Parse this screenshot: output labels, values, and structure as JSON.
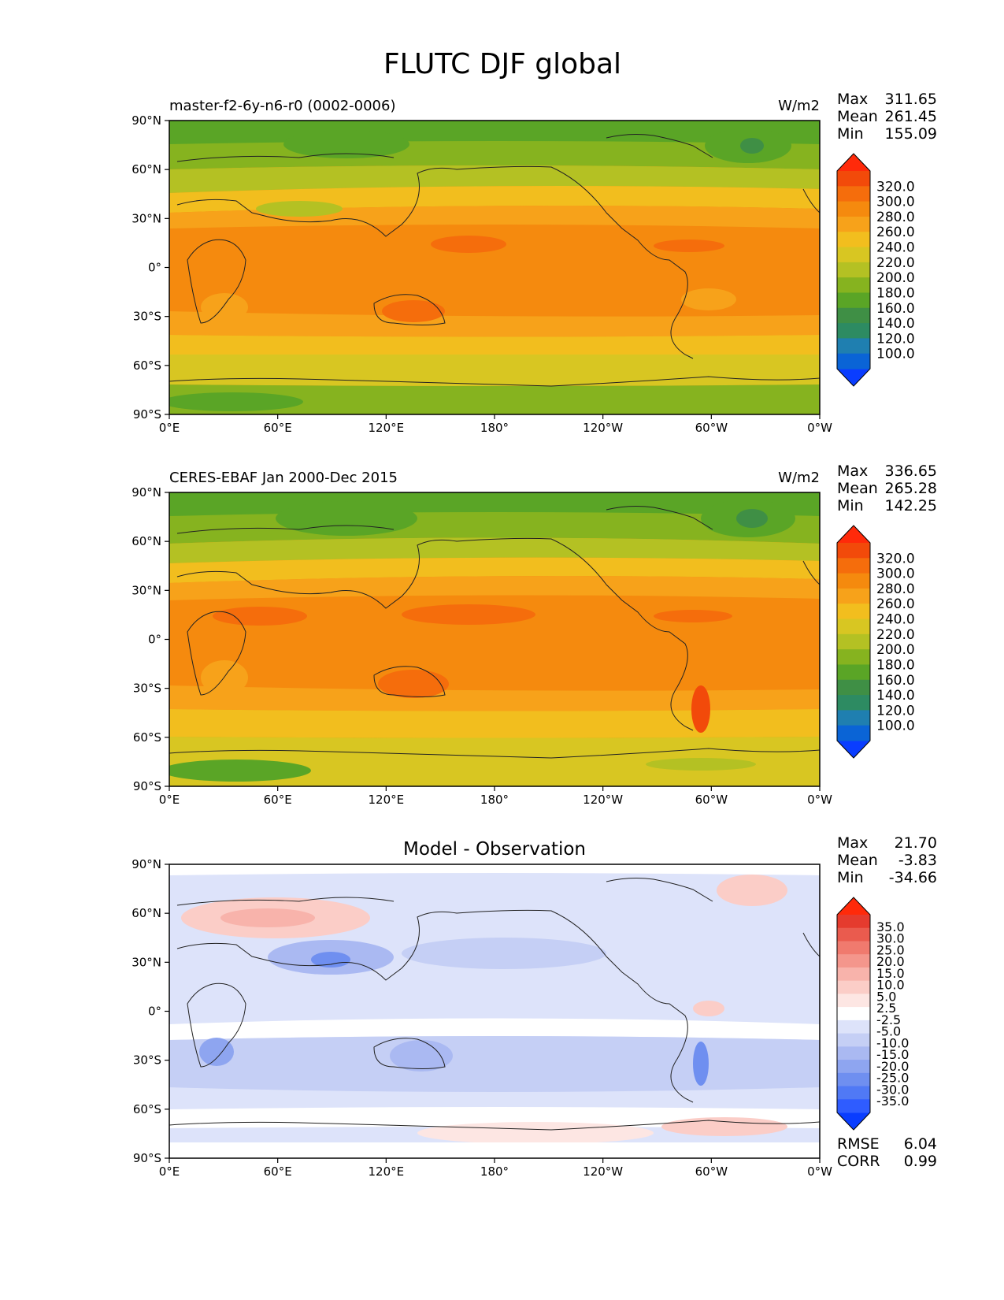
{
  "figure": {
    "title": "FLUTC DJF global"
  },
  "x_ticks": [
    "0°E",
    "60°E",
    "120°E",
    "180°",
    "120°W",
    "60°W",
    "0°W"
  ],
  "y_ticks": [
    "90°N",
    "60°N",
    "30°N",
    "0°",
    "30°S",
    "60°S",
    "90°S"
  ],
  "stat_labels": {
    "max": "Max",
    "mean": "Mean",
    "min": "Min",
    "rmse": "RMSE",
    "corr": "CORR"
  },
  "panels": [
    {
      "id": "model",
      "left_title": "master-f2-6y-n6-r0 (0002-0006)",
      "center_title": "",
      "units": "W/m2",
      "stats": {
        "max": "311.65",
        "mean": "261.45",
        "min": "155.09"
      },
      "colorbar_labels": [
        "320.0",
        "300.0",
        "280.0",
        "260.0",
        "240.0",
        "220.0",
        "200.0",
        "180.0",
        "160.0",
        "140.0",
        "120.0",
        "100.0"
      ]
    },
    {
      "id": "obs",
      "left_title": "CERES-EBAF Jan 2000-Dec 2015",
      "center_title": "",
      "units": "W/m2",
      "stats": {
        "max": "336.65",
        "mean": "265.28",
        "min": "142.25"
      },
      "colorbar_labels": [
        "320.0",
        "300.0",
        "280.0",
        "260.0",
        "240.0",
        "220.0",
        "200.0",
        "180.0",
        "160.0",
        "140.0",
        "120.0",
        "100.0"
      ]
    },
    {
      "id": "diff",
      "left_title": "",
      "center_title": "Model - Observation",
      "units": "",
      "stats": {
        "max": "21.70",
        "mean": "-3.83",
        "min": "-34.66",
        "rmse": "6.04",
        "corr": "0.99"
      },
      "colorbar_labels": [
        "35.0",
        "30.0",
        "25.0",
        "20.0",
        "15.0",
        "10.0",
        "5.0",
        "2.5",
        "-2.5",
        "-5.0",
        "-10.0",
        "-15.0",
        "-20.0",
        "-25.0",
        "-30.0",
        "-35.0"
      ]
    }
  ],
  "colors": {
    "abs_scale": [
      "#0a3dff",
      "#0a64d6",
      "#1f7fb0",
      "#2d8b62",
      "#3f8f45",
      "#5aa526",
      "#86b31f",
      "#b4c123",
      "#d8c622",
      "#f2be1e",
      "#f7a21a",
      "#f58a0e",
      "#f56d0c",
      "#f24a0a",
      "#ff2a0a"
    ],
    "diff_scale": [
      "#0a3dff",
      "#2f5cff",
      "#5079f5",
      "#6f8ff0",
      "#8ea5f0",
      "#aab9f2",
      "#c5cff5",
      "#dde3fa",
      "#ffffff",
      "#fde6e3",
      "#fbcdc7",
      "#f8b3ab",
      "#f4968c",
      "#f07a6e",
      "#ea5b4e",
      "#e53b2e",
      "#ff2a0a"
    ]
  }
}
